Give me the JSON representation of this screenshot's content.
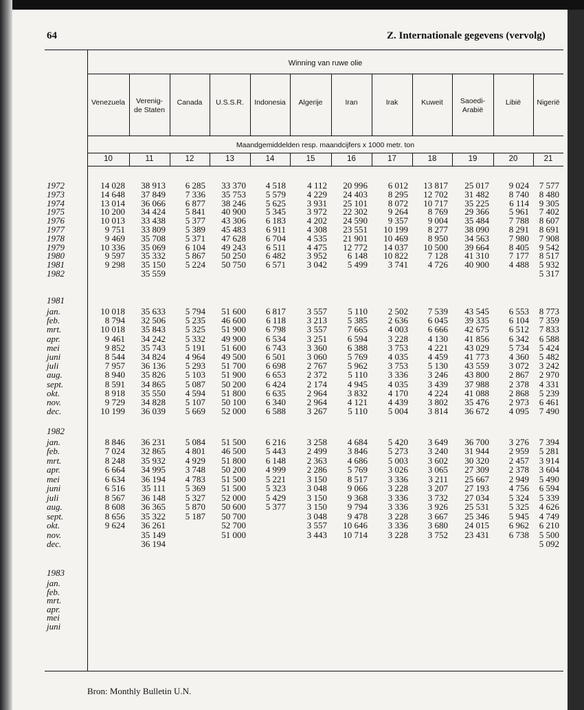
{
  "header": {
    "page_number": "64",
    "title": "Z. Internationale gegevens (vervolg)"
  },
  "table": {
    "group_title": "Winning van ruwe olie",
    "columns": [
      "Venezuela",
      "Verenig-\nde Staten",
      "Canada",
      "U.S.S.R.",
      "Indonesia",
      "Algerije",
      "Iran",
      "Irak",
      "Kuweit",
      "Saoedi-\nArabië",
      "Libië",
      "Nigerië"
    ],
    "unit_note": "Maandgemiddelden resp. maandcijfers x 1000 metr. ton",
    "column_numbers": [
      10,
      11,
      12,
      13,
      14,
      15,
      16,
      17,
      18,
      19,
      20,
      21
    ],
    "sections": [
      {
        "rows": [
          {
            "label": "1972",
            "values": [
              "14 028",
              "38 913",
              "6 285",
              "33 370",
              "4 518",
              "4 112",
              "20 996",
              "6 012",
              "13 817",
              "25 017",
              "9 024",
              "7 577"
            ]
          },
          {
            "label": "1973",
            "values": [
              "14 648",
              "37 849",
              "7 336",
              "35 753",
              "5 579",
              "4 229",
              "24 403",
              "8 295",
              "12 702",
              "31 482",
              "8 740",
              "8 480"
            ]
          },
          {
            "label": "1974",
            "values": [
              "13 014",
              "36 066",
              "6 877",
              "38 246",
              "5 625",
              "3 931",
              "25 101",
              "8 072",
              "10 717",
              "35 225",
              "6 114",
              "9 305"
            ]
          },
          {
            "label": "1975",
            "values": [
              "10 200",
              "34 424",
              "5 841",
              "40 900",
              "5 345",
              "3 972",
              "22 302",
              "9 264",
              "8 769",
              "29 366",
              "5 961",
              "7 402"
            ]
          },
          {
            "label": "1976",
            "values": [
              "10 013",
              "33 438",
              "5 377",
              "43 306",
              "6 183",
              "4 202",
              "24 590",
              "9 357",
              "9 004",
              "35 484",
              "7 788",
              "8 607"
            ]
          },
          {
            "label": "1977",
            "values": [
              "9 751",
              "33 809",
              "5 389",
              "45 483",
              "6 911",
              "4 308",
              "23 551",
              "10 199",
              "8 277",
              "38 090",
              "8 291",
              "8 691"
            ]
          },
          {
            "label": "1978",
            "values": [
              "9 469",
              "35 708",
              "5 371",
              "47 628",
              "6 704",
              "4 535",
              "21 901",
              "10 469",
              "8 950",
              "34 563",
              "7 980",
              "7 908"
            ]
          },
          {
            "label": "1979",
            "values": [
              "10 336",
              "35 069",
              "6 104",
              "49 243",
              "6 511",
              "4 475",
              "12 772",
              "14 037",
              "10 500",
              "39 664",
              "8 405",
              "9 542"
            ]
          },
          {
            "label": "1980",
            "values": [
              "9 597",
              "35 332",
              "5 867",
              "50 250",
              "6 482",
              "3 952",
              "6 148",
              "10 822",
              "7 128",
              "41 310",
              "7 177",
              "8 517"
            ]
          },
          {
            "label": "1981",
            "values": [
              "9 298",
              "35 150",
              "5 224",
              "50 750",
              "6 571",
              "3 042",
              "5 499",
              "3 741",
              "4 726",
              "40 900",
              "4 488",
              "5 932"
            ]
          },
          {
            "label": "1982",
            "values": [
              null,
              "35 559",
              null,
              null,
              null,
              null,
              null,
              null,
              null,
              null,
              null,
              "5 317"
            ]
          }
        ]
      },
      {
        "heading": "1981",
        "rows": [
          {
            "label": "jan.",
            "values": [
              "10 018",
              "35 633",
              "5 794",
              "51 600",
              "6 817",
              "3 557",
              "5 110",
              "2 502",
              "7 539",
              "43 545",
              "6 553",
              "8 773"
            ]
          },
          {
            "label": "feb.",
            "values": [
              "8 794",
              "32 506",
              "5 235",
              "46 600",
              "6 118",
              "3 213",
              "5 385",
              "2 636",
              "6 045",
              "39 335",
              "6 104",
              "7 359"
            ]
          },
          {
            "label": "mrt.",
            "values": [
              "10 018",
              "35 843",
              "5 325",
              "51 900",
              "6 798",
              "3 557",
              "7 665",
              "4 003",
              "6 666",
              "42 675",
              "6 512",
              "7 833"
            ]
          },
          {
            "label": "apr.",
            "values": [
              "9 461",
              "34 242",
              "5 332",
              "49 900",
              "6 534",
              "3 251",
              "6 594",
              "3 228",
              "4 130",
              "41 856",
              "6 342",
              "6 588"
            ]
          },
          {
            "label": "mei",
            "values": [
              "9 852",
              "35 743",
              "5 191",
              "51 600",
              "6 743",
              "3 360",
              "6 388",
              "3 753",
              "4 221",
              "43 029",
              "5 734",
              "5 424"
            ]
          },
          {
            "label": "juni",
            "values": [
              "8 544",
              "34 824",
              "4 964",
              "49 500",
              "6 501",
              "3 060",
              "5 769",
              "4 035",
              "4 459",
              "41 773",
              "4 360",
              "5 482"
            ]
          },
          {
            "label": "juli",
            "values": [
              "7 957",
              "36 136",
              "5 293",
              "51 700",
              "6 698",
              "2 767",
              "5 962",
              "3 753",
              "5 130",
              "43 559",
              "3 072",
              "3 242"
            ]
          },
          {
            "label": "aug.",
            "values": [
              "8 940",
              "35 826",
              "5 103",
              "51 900",
              "6 653",
              "2 372",
              "5 110",
              "3 336",
              "3 246",
              "43 800",
              "2 867",
              "2 970"
            ]
          },
          {
            "label": "sept.",
            "values": [
              "8 591",
              "34 865",
              "5 087",
              "50 200",
              "6 424",
              "2 174",
              "4 945",
              "4 035",
              "3 439",
              "37 988",
              "2 378",
              "4 331"
            ]
          },
          {
            "label": "okt.",
            "values": [
              "8 918",
              "35 550",
              "4 594",
              "51 800",
              "6 635",
              "2 964",
              "3 832",
              "4 170",
              "4 224",
              "41 088",
              "2 868",
              "5 239"
            ]
          },
          {
            "label": "nov.",
            "values": [
              "9 729",
              "34 828",
              "5 107",
              "50 100",
              "6 340",
              "2 964",
              "4 121",
              "4 439",
              "3 802",
              "35 476",
              "2 973",
              "6 461"
            ]
          },
          {
            "label": "dec.",
            "values": [
              "10 199",
              "36 039",
              "5 669",
              "52 000",
              "6 588",
              "3 267",
              "5 110",
              "5 004",
              "3 814",
              "36 672",
              "4 095",
              "7 490"
            ]
          }
        ]
      },
      {
        "heading": "1982",
        "rows": [
          {
            "label": "jan.",
            "values": [
              "8 846",
              "36 231",
              "5 084",
              "51 500",
              "6 216",
              "3 258",
              "4 684",
              "5 420",
              "3 649",
              "36 700",
              "3 276",
              "7 394"
            ]
          },
          {
            "label": "feb.",
            "values": [
              "7 024",
              "32 865",
              "4 801",
              "46 500",
              "5 443",
              "2 499",
              "3 846",
              "5 273",
              "3 240",
              "31 944",
              "2 959",
              "5 281"
            ]
          },
          {
            "label": "mrt.",
            "values": [
              "8 248",
              "35 932",
              "4 929",
              "51 800",
              "6 148",
              "2 363",
              "4 686",
              "5 003",
              "3 602",
              "30 320",
              "2 457",
              "3 914"
            ]
          },
          {
            "label": "apr.",
            "values": [
              "6 664",
              "34 995",
              "3 748",
              "50 200",
              "4 999",
              "2 286",
              "5 769",
              "3 026",
              "3 065",
              "27 309",
              "2 378",
              "3 604"
            ]
          },
          {
            "label": "mei",
            "values": [
              "6 634",
              "36 194",
              "4 783",
              "51 500",
              "5 221",
              "3 150",
              "8 517",
              "3 336",
              "3 211",
              "25 667",
              "2 949",
              "5 490"
            ]
          },
          {
            "label": "juni",
            "values": [
              "6 516",
              "35 111",
              "5 369",
              "51 500",
              "5 323",
              "3 048",
              "9 066",
              "3 228",
              "3 207",
              "27 193",
              "4 756",
              "6 594"
            ]
          },
          {
            "label": "juli",
            "values": [
              "8 567",
              "36 148",
              "5 327",
              "52 000",
              "5 429",
              "3 150",
              "9 368",
              "3 336",
              "3 732",
              "27 034",
              "5 324",
              "5 339"
            ]
          },
          {
            "label": "aug.",
            "values": [
              "8 608",
              "36 365",
              "5 870",
              "50 600",
              "5 377",
              "3 150",
              "9 794",
              "3 336",
              "3 926",
              "25 531",
              "5 325",
              "4 626"
            ]
          },
          {
            "label": "sept.",
            "values": [
              "8 656",
              "35 322",
              "5 187",
              "50 700",
              null,
              "3 048",
              "9 478",
              "3 228",
              "3 667",
              "25 346",
              "5 945",
              "4 749"
            ]
          },
          {
            "label": "okt.",
            "values": [
              "9 624",
              "36 261",
              null,
              "52 700",
              null,
              "3 557",
              "10 646",
              "3 336",
              "3 680",
              "24 015",
              "6 962",
              "6 210"
            ]
          },
          {
            "label": "nov.",
            "values": [
              null,
              "35 149",
              null,
              "51 000",
              null,
              "3 443",
              "10 714",
              "3 228",
              "3 752",
              "23 431",
              "6 738",
              "5 500"
            ]
          },
          {
            "label": "dec.",
            "values": [
              null,
              "36 194",
              null,
              null,
              null,
              null,
              null,
              null,
              null,
              null,
              null,
              "5 092"
            ]
          }
        ]
      },
      {
        "heading": "1983",
        "rows": [
          {
            "label": "jan."
          },
          {
            "label": "feb."
          },
          {
            "label": "mrt."
          },
          {
            "label": "apr."
          },
          {
            "label": "mei"
          },
          {
            "label": "juni"
          }
        ]
      }
    ]
  },
  "footer": {
    "source": "Bron: Monthly Bulletin U.N."
  }
}
